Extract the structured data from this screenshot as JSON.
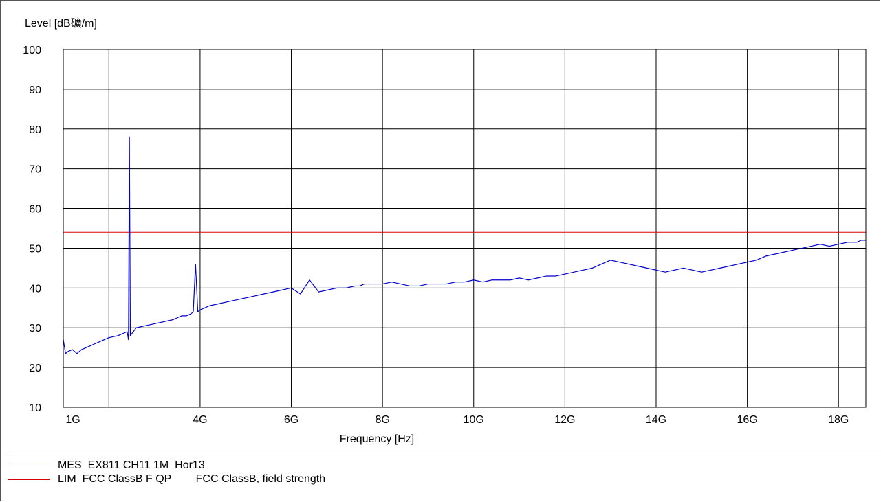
{
  "chart_data": {
    "type": "line",
    "ylabel": "Level [dB礦/m]",
    "xlabel": "Frequency [Hz]",
    "ylim": [
      10,
      100
    ],
    "xlim": [
      1,
      18.6
    ],
    "yticks": [
      100,
      90,
      80,
      70,
      60,
      50,
      40,
      30,
      20,
      10
    ],
    "xtick_values": [
      1,
      4,
      6,
      8,
      10,
      12,
      14,
      16,
      18
    ],
    "xtick_labels": [
      "1G",
      "4G",
      "6G",
      "8G",
      "10G",
      "12G",
      "14G",
      "16G",
      "18G"
    ],
    "grid": true,
    "colors": {
      "measurement": "#0000cc",
      "limit": "#dd0000",
      "grid": "#000000"
    },
    "series": [
      {
        "name": "MES  EX811 CH11 1M  Hor13",
        "x": [
          1.0,
          1.05,
          1.1,
          1.2,
          1.3,
          1.4,
          1.5,
          1.6,
          1.7,
          1.8,
          1.9,
          2.0,
          2.2,
          2.4,
          2.6,
          2.8,
          3.0,
          3.2,
          3.4,
          3.5,
          3.6,
          3.7,
          3.8,
          3.85,
          3.9,
          3.95,
          4.0,
          4.1,
          4.2,
          4.4,
          4.6,
          4.8,
          5.0,
          5.2,
          5.4,
          5.6,
          5.8,
          6.0,
          6.2,
          6.4,
          6.6,
          6.8,
          7.0,
          7.2,
          7.4,
          7.5,
          7.6,
          7.8,
          8.0,
          8.2,
          8.4,
          8.6,
          8.8,
          9.0,
          9.2,
          9.4,
          9.6,
          9.8,
          10.0,
          10.2,
          10.4,
          10.6,
          10.8,
          11.0,
          11.2,
          11.4,
          11.6,
          11.8,
          12.0,
          12.2,
          12.4,
          12.6,
          12.8,
          13.0,
          13.2,
          13.4,
          13.6,
          13.8,
          14.0,
          14.2,
          14.4,
          14.6,
          14.8,
          15.0,
          15.2,
          15.4,
          15.6,
          15.8,
          16.0,
          16.2,
          16.4,
          16.6,
          16.8,
          17.0,
          17.2,
          17.4,
          17.6,
          17.8,
          18.0,
          18.2,
          18.4,
          18.5,
          18.6
        ],
        "y": [
          27,
          23.5,
          24,
          24.5,
          23.5,
          24.5,
          25,
          25.5,
          26,
          26.5,
          27,
          27.5,
          28,
          29,
          30,
          30.5,
          31,
          31.5,
          32,
          32.5,
          33,
          33,
          33.5,
          34,
          46,
          34,
          34.5,
          35,
          35.5,
          36,
          36.5,
          37,
          37.5,
          38,
          38.5,
          39,
          39.5,
          40,
          38.5,
          42,
          39,
          39.5,
          40,
          40,
          40.5,
          40.5,
          41,
          41,
          41,
          41.5,
          41,
          40.5,
          40.5,
          41,
          41,
          41,
          41.5,
          41.5,
          42,
          41.5,
          42,
          42,
          42,
          42.5,
          42,
          42.5,
          43,
          43,
          43.5,
          44,
          44.5,
          45,
          46,
          47,
          46.5,
          46,
          45.5,
          45,
          44.5,
          44,
          44.5,
          45,
          44.5,
          44,
          44.5,
          45,
          45.5,
          46,
          46.5,
          47,
          48,
          48.5,
          49,
          49.5,
          50,
          50.5,
          51,
          50.5,
          51,
          51.5,
          51.5,
          52,
          52
        ],
        "spike": {
          "x": 2.45,
          "y": 78
        }
      },
      {
        "name": "LIM  FCC ClassB F QP",
        "x": [
          1,
          18.6
        ],
        "y": [
          54,
          54
        ]
      }
    ]
  },
  "legend": {
    "items": [
      {
        "label": "MES  EX811 CH11 1M  Hor13",
        "color": "#0000cc"
      },
      {
        "label": "LIM  FCC ClassB F QP        FCC ClassB, field strength",
        "color": "#dd0000"
      }
    ]
  }
}
